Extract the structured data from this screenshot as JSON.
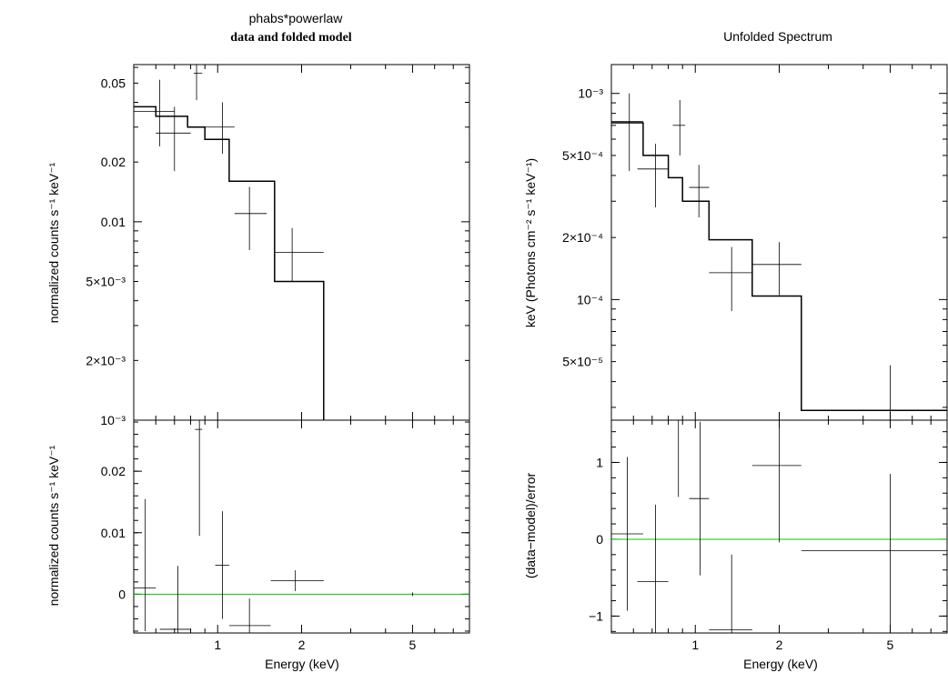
{
  "title_left": "phabs*powerlaw",
  "subtitle_left": "data and folded model",
  "title_right": "Unfolded Spectrum",
  "colors": {
    "data": "#000000",
    "zero_line": "#00c800",
    "frame": "#000000"
  },
  "chart_data": [
    {
      "id": "left-top",
      "type": "line",
      "title": "phabs*powerlaw",
      "subtitle": "data and folded model",
      "xlabel": "",
      "ylabel": "normalized counts s⁻¹ keV⁻¹",
      "xscale": "log",
      "yscale": "log",
      "xlim": [
        0.5,
        8.0
      ],
      "ylim": [
        0.001,
        0.062
      ],
      "yticks": [
        {
          "v": 0.05,
          "label": "0.05"
        },
        {
          "v": 0.02,
          "label": "0.02"
        },
        {
          "v": 0.01,
          "label": "0.01"
        },
        {
          "v": 0.005,
          "label": "5×10⁻³"
        },
        {
          "v": 0.002,
          "label": "2×10⁻³"
        },
        {
          "v": 0.001,
          "label": "10⁻³"
        }
      ],
      "data_points": [
        {
          "x": 0.62,
          "xlo": 0.5,
          "xhi": 0.7,
          "y": 0.036,
          "ylo": 0.024,
          "yhi": 0.052
        },
        {
          "x": 0.7,
          "xlo": 0.6,
          "xhi": 0.8,
          "y": 0.028,
          "ylo": 0.018,
          "yhi": 0.038
        },
        {
          "x": 0.84,
          "xlo": 0.82,
          "xhi": 0.88,
          "y": 0.056,
          "ylo": 0.041,
          "yhi": 0.066
        },
        {
          "x": 1.04,
          "xlo": 0.9,
          "xhi": 1.15,
          "y": 0.03,
          "ylo": 0.022,
          "yhi": 0.04
        },
        {
          "x": 1.3,
          "xlo": 1.15,
          "xhi": 1.5,
          "y": 0.011,
          "ylo": 0.0072,
          "yhi": 0.015
        },
        {
          "x": 1.85,
          "xlo": 1.6,
          "xhi": 2.4,
          "y": 0.007,
          "ylo": 0.005,
          "yhi": 0.0093
        }
      ],
      "model_steps": [
        {
          "x0": 0.5,
          "x1": 0.6,
          "y": 0.038
        },
        {
          "x0": 0.6,
          "x1": 0.78,
          "y": 0.034
        },
        {
          "x0": 0.78,
          "x1": 0.9,
          "y": 0.03
        },
        {
          "x0": 0.9,
          "x1": 1.1,
          "y": 0.026
        },
        {
          "x0": 1.1,
          "x1": 1.6,
          "y": 0.016
        },
        {
          "x0": 1.6,
          "x1": 2.4,
          "y": 0.005
        },
        {
          "x0": 2.4,
          "x1": 2.4,
          "y": 0.001
        }
      ]
    },
    {
      "id": "left-bottom",
      "type": "scatter",
      "xlabel": "Energy (keV)",
      "ylabel": "normalized counts s⁻¹ keV⁻¹",
      "xscale": "log",
      "yscale": "linear",
      "xlim": [
        0.5,
        8.0
      ],
      "ylim": [
        -0.0063,
        0.0283
      ],
      "xticks": [
        {
          "v": 1,
          "label": "1"
        },
        {
          "v": 2,
          "label": "2"
        },
        {
          "v": 5,
          "label": "5"
        }
      ],
      "yticks": [
        {
          "v": 0.02,
          "label": "0.02"
        },
        {
          "v": 0.01,
          "label": "0.01"
        },
        {
          "v": 0,
          "label": "0"
        }
      ],
      "zero_line": 0,
      "data_points": [
        {
          "x": 0.55,
          "xlo": 0.5,
          "xhi": 0.6,
          "y": 0.001,
          "ylo": -0.006,
          "yhi": 0.0155
        },
        {
          "x": 0.72,
          "xlo": 0.62,
          "xhi": 0.8,
          "y": -0.0057,
          "ylo": -0.007,
          "yhi": 0.0046
        },
        {
          "x": 0.86,
          "xlo": 0.83,
          "xhi": 0.88,
          "y": 0.0268,
          "ylo": 0.0095,
          "yhi": 0.03
        },
        {
          "x": 1.04,
          "xlo": 0.98,
          "xhi": 1.1,
          "y": 0.0047,
          "ylo": -0.004,
          "yhi": 0.0135
        },
        {
          "x": 1.3,
          "xlo": 1.1,
          "xhi": 1.55,
          "y": -0.0051,
          "ylo": -0.007,
          "yhi": -0.0007
        },
        {
          "x": 1.9,
          "xlo": 1.55,
          "xhi": 2.4,
          "y": 0.0022,
          "ylo": 0.0005,
          "yhi": 0.0039
        },
        {
          "x": 5.0,
          "xlo": 4.98,
          "xhi": 5.02,
          "y": 0.0,
          "ylo": -0.0003,
          "yhi": 0.0003
        }
      ]
    },
    {
      "id": "right-top",
      "type": "line",
      "title": "Unfolded Spectrum",
      "xlabel": "",
      "ylabel": "keV (Photons cm⁻² s⁻¹ keV⁻¹)",
      "xscale": "log",
      "yscale": "log",
      "xlim": [
        0.5,
        8.0
      ],
      "ylim": [
        2.6e-05,
        0.00138
      ],
      "yticks": [
        {
          "v": 0.001,
          "label": "10⁻³"
        },
        {
          "v": 0.0005,
          "label": "5×10⁻⁴"
        },
        {
          "v": 0.0002,
          "label": "2×10⁻⁴"
        },
        {
          "v": 0.0001,
          "label": "10⁻⁴"
        },
        {
          "v": 5e-05,
          "label": "5×10⁻⁵"
        }
      ],
      "data_points": [
        {
          "x": 0.58,
          "xlo": 0.5,
          "xhi": 0.65,
          "y": 0.00073,
          "ylo": 0.00042,
          "yhi": 0.001
        },
        {
          "x": 0.72,
          "xlo": 0.62,
          "xhi": 0.8,
          "y": 0.00043,
          "ylo": 0.00028,
          "yhi": 0.00057
        },
        {
          "x": 0.88,
          "xlo": 0.83,
          "xhi": 0.92,
          "y": 0.0007,
          "ylo": 0.0005,
          "yhi": 0.00093
        },
        {
          "x": 1.03,
          "xlo": 0.95,
          "xhi": 1.12,
          "y": 0.00035,
          "ylo": 0.00025,
          "yhi": 0.00045
        },
        {
          "x": 1.35,
          "xlo": 1.12,
          "xhi": 1.6,
          "y": 0.000135,
          "ylo": 8.8e-05,
          "yhi": 0.00018
        },
        {
          "x": 2.0,
          "xlo": 1.6,
          "xhi": 2.4,
          "y": 0.000148,
          "ylo": 0.000105,
          "yhi": 0.00019
        },
        {
          "x": 5.0,
          "xlo": 5.0,
          "xhi": 5.0,
          "y": 3.3e-05,
          "ylo": 2.6e-05,
          "yhi": 4.8e-05
        }
      ],
      "model_steps": [
        {
          "x0": 0.5,
          "x1": 0.65,
          "y": 0.00072
        },
        {
          "x0": 0.65,
          "x1": 0.8,
          "y": 0.0005
        },
        {
          "x0": 0.8,
          "x1": 0.9,
          "y": 0.00039
        },
        {
          "x0": 0.9,
          "x1": 1.12,
          "y": 0.0003
        },
        {
          "x0": 1.12,
          "x1": 1.6,
          "y": 0.000195
        },
        {
          "x0": 1.6,
          "x1": 2.4,
          "y": 0.000104
        },
        {
          "x0": 2.4,
          "x1": 8.0,
          "y": 2.9e-05
        }
      ]
    },
    {
      "id": "right-bottom",
      "type": "scatter",
      "xlabel": "Energy (keV)",
      "ylabel": "(data−model)/error",
      "xscale": "log",
      "yscale": "linear",
      "xlim": [
        0.5,
        8.0
      ],
      "ylim": [
        -1.22,
        1.55
      ],
      "xticks": [
        {
          "v": 1,
          "label": "1"
        },
        {
          "v": 2,
          "label": "2"
        },
        {
          "v": 5,
          "label": "5"
        }
      ],
      "yticks": [
        {
          "v": 1,
          "label": "1"
        },
        {
          "v": 0,
          "label": "0"
        },
        {
          "v": -1,
          "label": "−1"
        }
      ],
      "zero_line": 0,
      "data_points": [
        {
          "x": 0.57,
          "xlo": 0.5,
          "xhi": 0.65,
          "y": 0.07,
          "ylo": -0.93,
          "yhi": 1.07
        },
        {
          "x": 0.72,
          "xlo": 0.62,
          "xhi": 0.8,
          "y": -0.55,
          "ylo": -1.3,
          "yhi": 0.45
        },
        {
          "x": 0.87,
          "xlo": 0.83,
          "xhi": 0.9,
          "y": 1.55,
          "ylo": 0.55,
          "yhi": 1.6
        },
        {
          "x": 1.04,
          "xlo": 0.95,
          "xhi": 1.12,
          "y": 0.53,
          "ylo": -0.47,
          "yhi": 1.53
        },
        {
          "x": 1.35,
          "xlo": 1.12,
          "xhi": 1.6,
          "y": -1.18,
          "ylo": -1.3,
          "yhi": -0.2
        },
        {
          "x": 2.0,
          "xlo": 1.6,
          "xhi": 2.4,
          "y": 0.96,
          "ylo": -0.04,
          "yhi": 1.65
        },
        {
          "x": 5.0,
          "xlo": 2.4,
          "xhi": 8.0,
          "y": -0.15,
          "ylo": -1.3,
          "yhi": 0.85
        }
      ]
    }
  ]
}
